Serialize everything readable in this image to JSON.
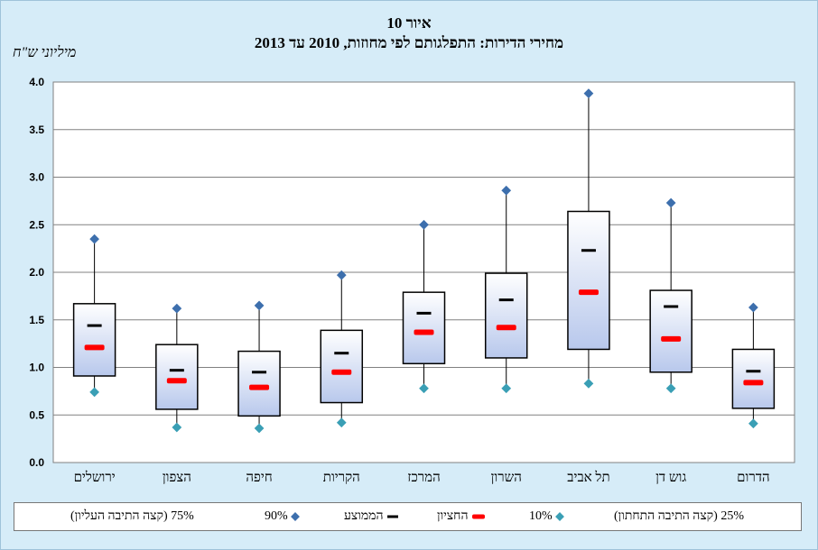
{
  "title": "איור 10",
  "subtitle": "מחירי הדירות: התפלגותם לפי מחוזות, 2010 עד 2013",
  "units_label": "מיליוני ש\"ח",
  "colors": {
    "background": "#d6ecf8",
    "box_top": "#ffffff",
    "box_bottom": "#b8c8ec",
    "p90_marker": "#3d6fad",
    "p10_marker": "#3a9fb5",
    "median": "#ff0000",
    "mean": "#000000"
  },
  "legend": {
    "p75": "75% (קצה התיבה העליון)",
    "p90": "90%",
    "mean": "הממוצע",
    "median": "החציון",
    "p10": "10%",
    "p25": "25% (קצה התיבה התחתון)"
  },
  "chart_data": {
    "type": "box",
    "title": "מחירי הדירות: התפלגותם לפי מחוזות, 2010 עד 2013",
    "ylabel": "מיליוני ש\"ח",
    "ylim": [
      0,
      4
    ],
    "yticks": [
      "0.0",
      "0.5",
      "1.0",
      "1.5",
      "2.0",
      "2.5",
      "3.0",
      "3.5",
      "4.0"
    ],
    "grid": true,
    "legend_position": "bottom",
    "categories": [
      "ירושלים",
      "הצפון",
      "חיפה",
      "הקריות",
      "המרכז",
      "השרון",
      "תל אביב",
      "גוש דן",
      "הדרום"
    ],
    "p90": [
      2.35,
      1.62,
      1.65,
      1.97,
      2.5,
      2.86,
      3.88,
      2.73,
      1.63
    ],
    "p75": [
      1.67,
      1.24,
      1.17,
      1.39,
      1.79,
      1.99,
      2.64,
      1.81,
      1.19
    ],
    "mean": [
      1.44,
      0.97,
      0.95,
      1.15,
      1.57,
      1.71,
      2.23,
      1.64,
      0.96
    ],
    "median": [
      1.21,
      0.86,
      0.79,
      0.95,
      1.37,
      1.42,
      1.79,
      1.3,
      0.84
    ],
    "p25": [
      0.91,
      0.56,
      0.49,
      0.63,
      1.04,
      1.1,
      1.19,
      0.95,
      0.57
    ],
    "p10": [
      0.74,
      0.37,
      0.36,
      0.42,
      0.78,
      0.78,
      0.83,
      0.78,
      0.41
    ]
  }
}
